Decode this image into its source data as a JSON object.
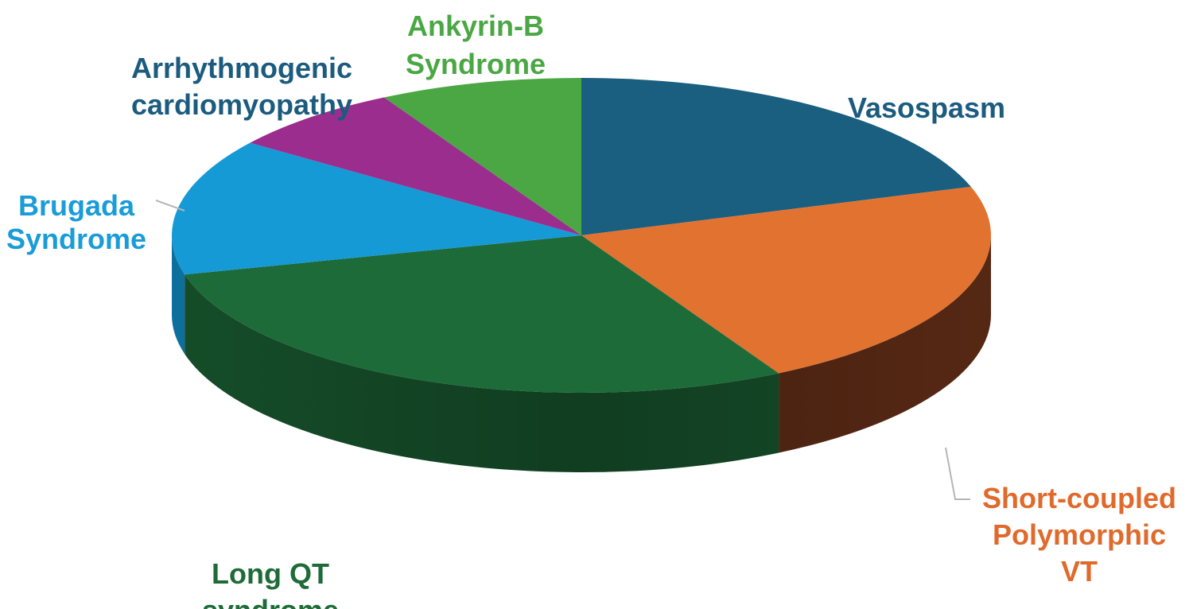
{
  "chart_data": {
    "type": "pie",
    "style": "3d",
    "unit": "percent (estimated)",
    "slices": [
      {
        "label_lines": [
          "Vasospasm"
        ],
        "value": 20,
        "color": "#1a5e80",
        "side_color": "#0f3c52",
        "label_color": "#1b5b7e"
      },
      {
        "label_lines": [
          "Short-coupled",
          "Polymorphic",
          "VT"
        ],
        "value": 22,
        "color": "#e2722f",
        "side_color": "#5a2a15",
        "label_color": "#e06a2c"
      },
      {
        "label_lines": [
          "Long QT",
          "syndrome"
        ],
        "value": 29,
        "color": "#1e6b3a",
        "side_color": "#16512b",
        "label_color": "#1f6b38"
      },
      {
        "label_lines": [
          "Brugada",
          "Syndrome"
        ],
        "value": 14,
        "color": "#159ad6",
        "side_color": "#0e75a4",
        "label_color": "#1a9cd8"
      },
      {
        "label_lines": [
          "Arrhythmogenic",
          "cardiomyopathy"
        ],
        "value": 7,
        "color": "#9b2d8e",
        "side_color": "#6e1f65",
        "label_color": "#1b5b7e"
      },
      {
        "label_lines": [
          "Ankyrin-B",
          "Syndrome"
        ],
        "value": 8,
        "color": "#4aa744",
        "side_color": "#347a30",
        "label_color": "#4aa744"
      }
    ],
    "legend": "none",
    "title": ""
  }
}
